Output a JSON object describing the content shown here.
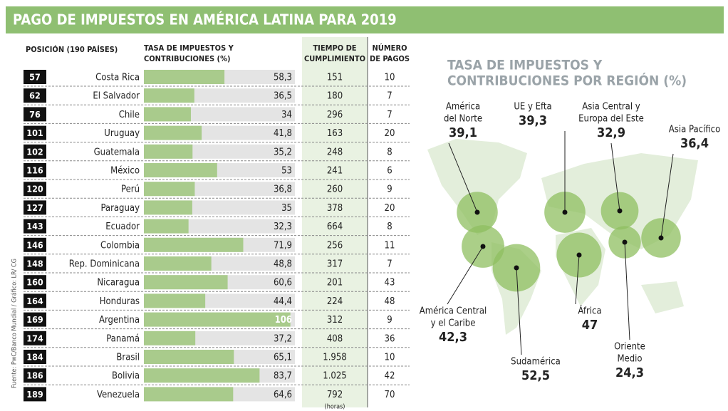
{
  "header": {
    "title": "PAGO DE IMPUESTOS EN AMÉRICA LATINA PARA 2019"
  },
  "table": {
    "headers": {
      "position": "POSICIÓN (190 PAÍSES)",
      "rate": [
        "TASA DE IMPUESTOS Y",
        "CONTRIBUCIONES (%)"
      ],
      "time": [
        "TIEMPO DE",
        "CUMPLIMIENTO"
      ],
      "payments": [
        "NÚMERO",
        "DE PAGOS"
      ]
    },
    "positions": [
      57,
      62,
      76,
      101,
      102,
      116,
      120,
      127,
      143,
      146,
      148,
      160,
      164,
      169,
      174,
      184,
      186,
      189
    ],
    "countries": [
      "Costa Rica",
      "El Salvador",
      "Chile",
      "Uruguay",
      "Guatemala",
      "México",
      "Perú",
      "Paraguay",
      "Ecuador",
      "Colombia",
      "Rep. Dominicana",
      "Nicaragua",
      "Honduras",
      "Argentina",
      "Panamá",
      "Brasil",
      "Bolivia",
      "Venezuela"
    ],
    "rates": [
      58.3,
      36.5,
      34,
      41.8,
      35.2,
      53,
      36.8,
      35,
      32.3,
      71.9,
      48.8,
      60.6,
      44.4,
      106,
      37.2,
      65.1,
      83.7,
      64.6
    ],
    "rate_labels": [
      "58,3",
      "36,5",
      "34",
      "41,8",
      "35,2",
      "53",
      "36,8",
      "35",
      "32,3",
      "71,9",
      "48,8",
      "60,6",
      "44,4",
      "106",
      "37,2",
      "65,1",
      "83,7",
      "64,6"
    ],
    "times": [
      "151",
      "180",
      "296",
      "163",
      "248",
      "241",
      "260",
      "378",
      "664",
      "256",
      "317",
      "201",
      "224",
      "312",
      "408",
      "1.958",
      "1.025",
      "792"
    ],
    "payments": [
      10,
      7,
      7,
      20,
      8,
      6,
      9,
      20,
      8,
      11,
      7,
      43,
      48,
      9,
      36,
      10,
      42,
      70
    ],
    "time_unit": "(horas)"
  },
  "source": "Fuente: PwC/Banco Mundial / Gráfico: LR/ CG",
  "map": {
    "title": [
      "TASA DE IMPUESTOS Y",
      "CONTRIBUCIONES POR REGIÓN (%)"
    ],
    "regions": [
      {
        "name": [
          "América",
          "del Norte"
        ],
        "value": 39.1,
        "value_label": "39,1"
      },
      {
        "name": [
          "UE y Efta"
        ],
        "value": 39.3,
        "value_label": "39,3"
      },
      {
        "name": [
          "Asia Central y",
          "Europa del Este"
        ],
        "value": 32.9,
        "value_label": "32,9"
      },
      {
        "name": [
          "Asia Pacífico"
        ],
        "value": 36.4,
        "value_label": "36,4"
      },
      {
        "name": [
          "América Central",
          "y el Caribe"
        ],
        "value": 42.3,
        "value_label": "42,3"
      },
      {
        "name": [
          "Sudamérica"
        ],
        "value": 52.5,
        "value_label": "52,5"
      },
      {
        "name": [
          "África"
        ],
        "value": 47,
        "value_label": "47"
      },
      {
        "name": [
          "Oriente",
          "Medio"
        ],
        "value": 24.3,
        "value_label": "24,3"
      }
    ]
  }
}
